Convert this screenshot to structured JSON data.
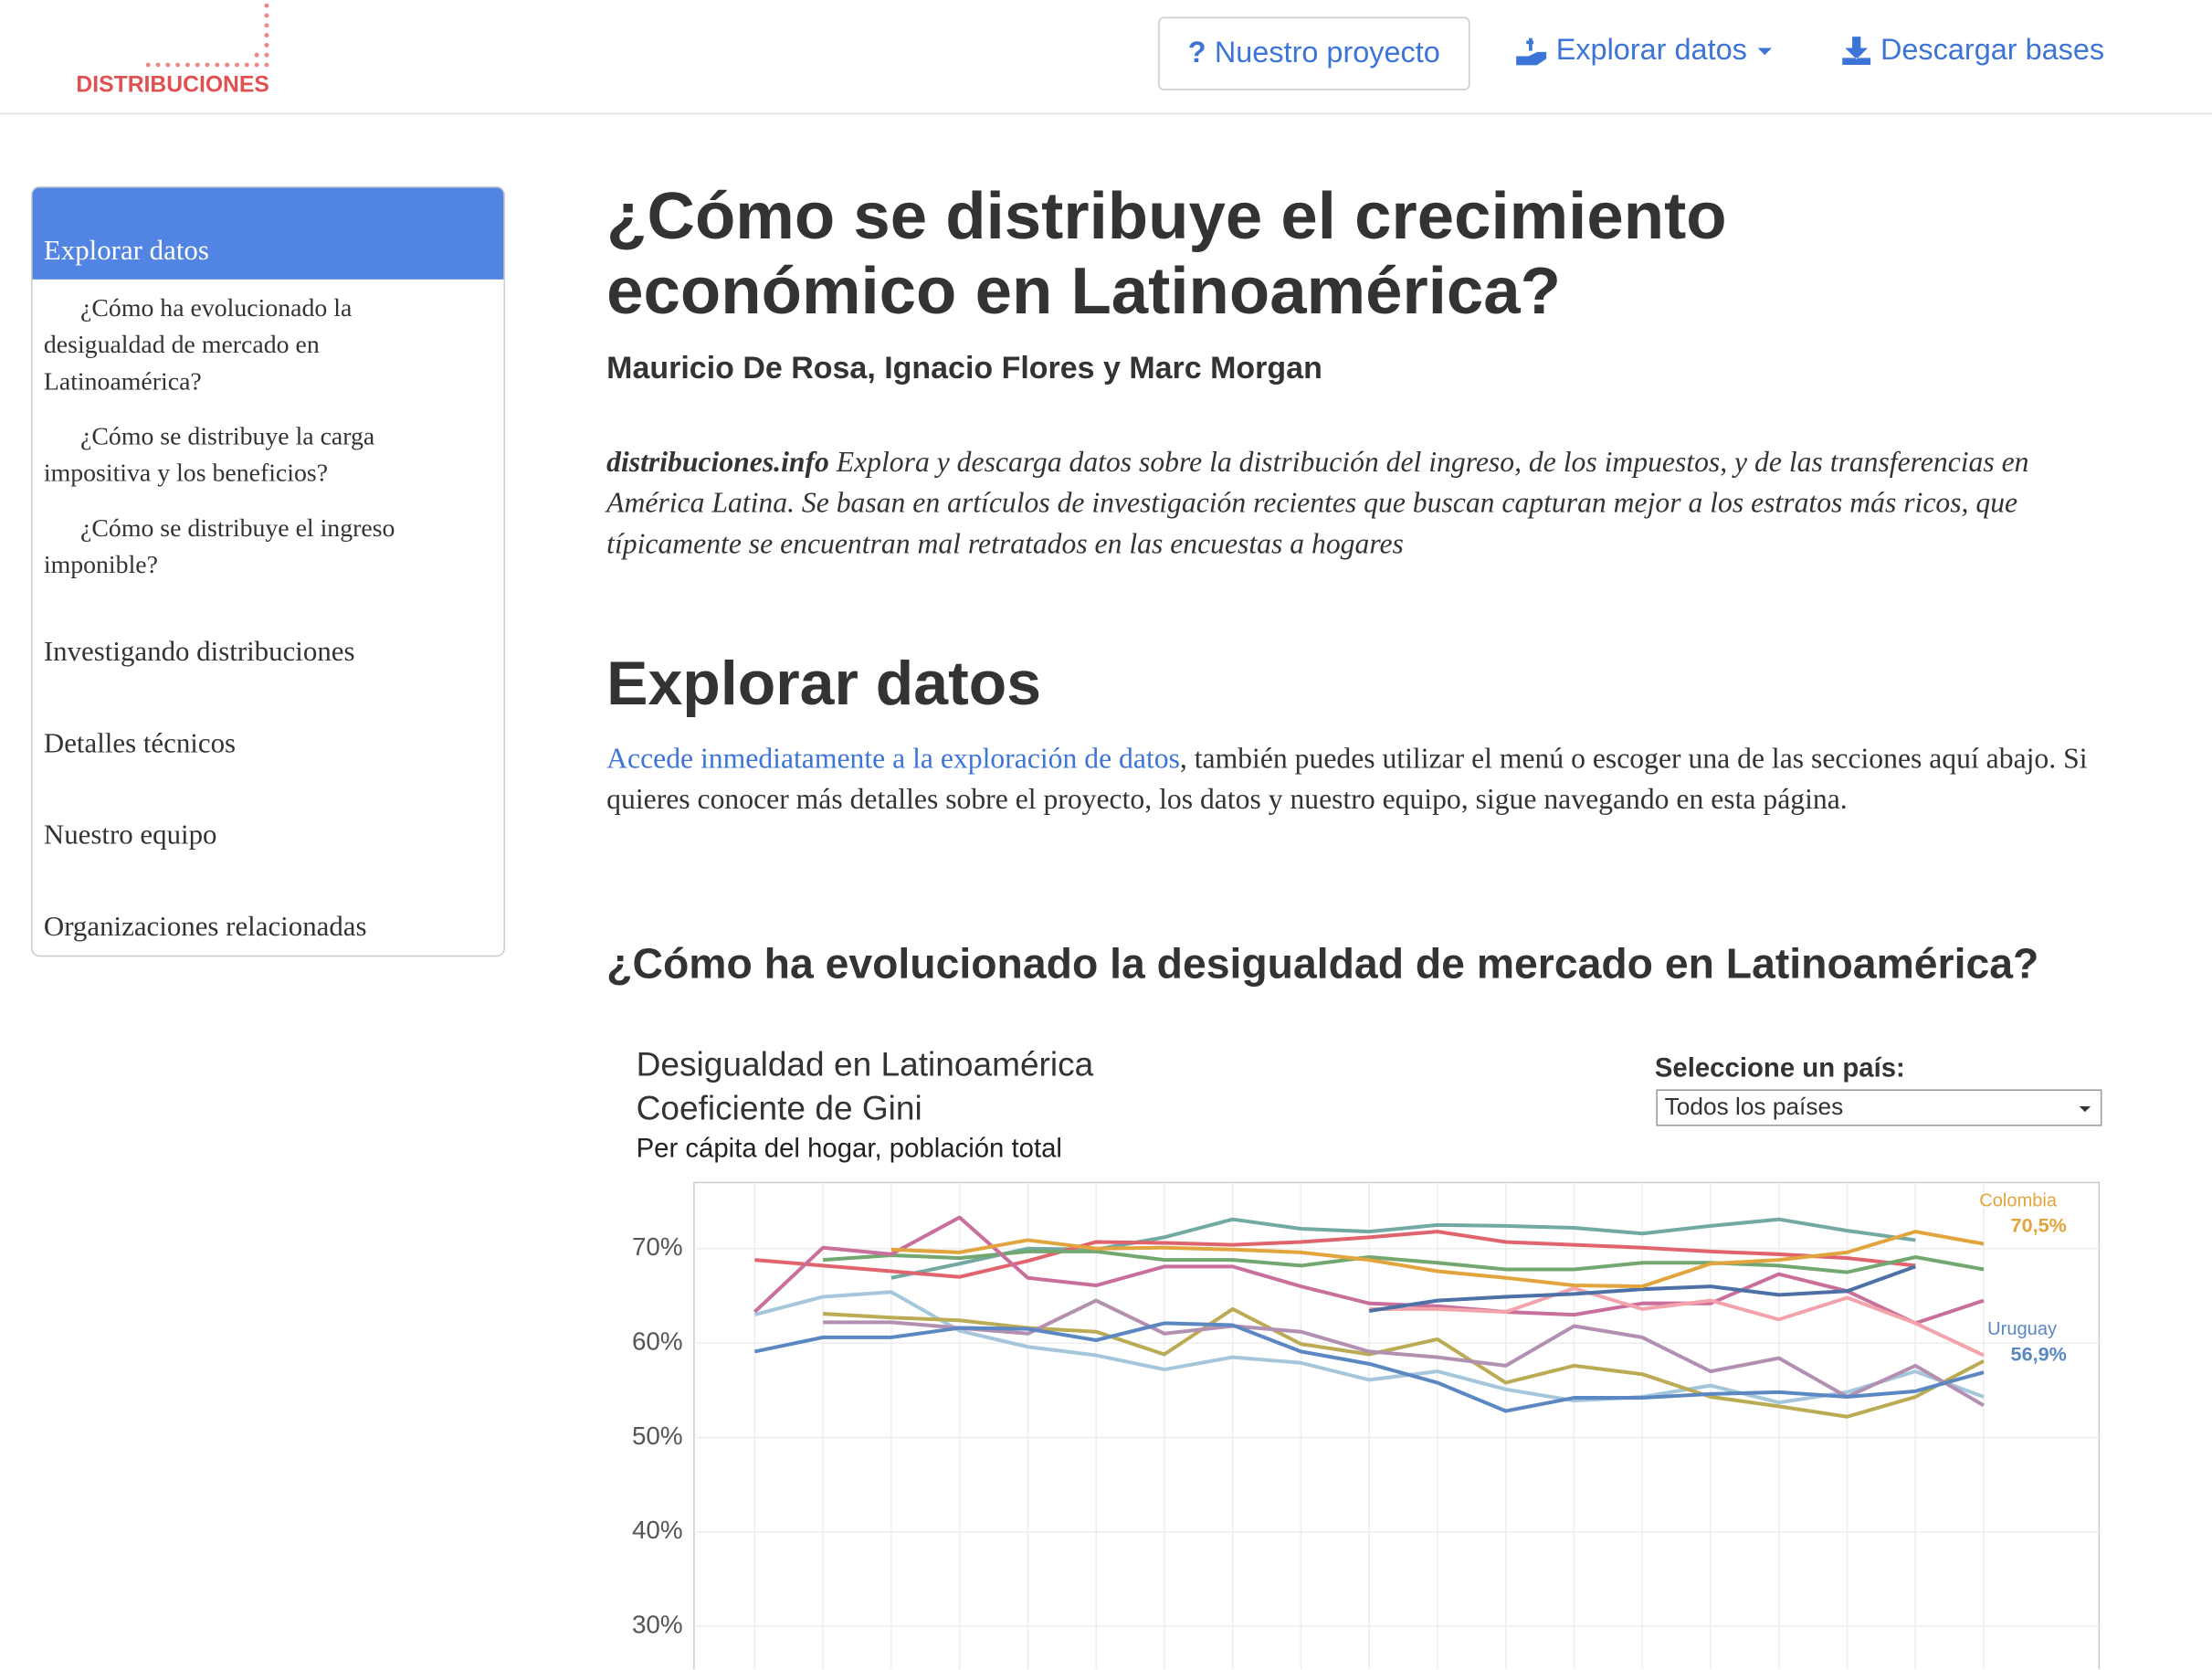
{
  "header": {
    "logo": "DISTRIBUCIONES",
    "nav": [
      "Nuestro proyecto",
      "Explorar datos",
      "Descargar bases"
    ]
  },
  "sidebar": {
    "active": "Explorar datos",
    "subitems": [
      "¿Cómo ha evolucionado la desigualdad de mercado en Latinoamérica?",
      "¿Cómo se distribuye la carga impositiva y los beneficios?",
      "¿Cómo se distribuye el ingreso imponible?"
    ],
    "items": [
      "Investigando distribuciones",
      "Detalles técnicos",
      "Nuestro equipo",
      "Organizaciones relacionadas"
    ]
  },
  "main": {
    "title": [
      "¿Cómo se distribuye el crecimiento",
      "económico en Latinoamérica?"
    ],
    "authors": "Mauricio De Rosa, Ignacio Flores y Marc Morgan",
    "intro_site": "distribuciones.info",
    "intro": "Explora y descarga datos sobre la distribución del ingreso, de los impuestos, y de las transferencias en América Latina. Se basan en artículos de investigación recientes que buscan capturan mejor a los estratos más ricos, que típicamente se encuentran mal retratados en las encuestas a hogares",
    "section_title": "Explorar datos",
    "section_link": "Accede inmediatamente a la exploración de datos",
    "section_text": ", también puedes utilizar el menú o escoger una de las secciones aquí abajo. Si quieres conocer más detalles sobre el proyecto, los datos y nuestro equipo, sigue navegando en esta página.",
    "subsection_title": "¿Cómo ha evolucionado la desigualdad de mercado en Latinoamérica?"
  },
  "chart_data": {
    "type": "line",
    "title": [
      "Desigualdad en Latinoamérica",
      "Coeficiente de Gini"
    ],
    "subtitle": "Per cápita del hogar, población total",
    "selector_label": "Seleccione un país:",
    "selector_value": "Todos los países",
    "categories": [
      null,
      null,
      null,
      null,
      null,
      null,
      null,
      null,
      null,
      null,
      null,
      null,
      null,
      null,
      null,
      null,
      null,
      null,
      null
    ],
    "ylim": [
      25,
      77
    ],
    "yticks": [
      {
        "value": 30,
        "label": "30%"
      },
      {
        "value": 40,
        "label": "40%"
      },
      {
        "value": 50,
        "label": "50%"
      },
      {
        "value": 60,
        "label": "60%"
      },
      {
        "value": 70,
        "label": "70%"
      }
    ],
    "grid": true,
    "series": [
      {
        "color": "#72a9a2",
        "values": [
          null,
          null,
          66.9,
          68.4,
          70,
          69.9,
          71.2,
          73.1,
          72.1,
          71.8,
          72.5,
          72.4,
          72.2,
          71.6,
          72.4,
          73.1,
          71.9,
          70.9,
          null
        ]
      },
      {
        "color": "#e0646e",
        "values": [
          68.8,
          68.2,
          67.6,
          67,
          68.7,
          70.7,
          70.6,
          70.4,
          70.7,
          71.2,
          71.8,
          70.7,
          70.4,
          70.1,
          69.7,
          69.4,
          69,
          68.2,
          null
        ]
      },
      {
        "color": "#72a86f",
        "values": [
          null,
          68.8,
          69.3,
          69,
          69.7,
          69.7,
          68.8,
          68.8,
          68.2,
          69.1,
          68.5,
          67.8,
          67.8,
          68.5,
          68.5,
          68.2,
          67.5,
          69.1,
          67.8
        ]
      },
      {
        "color": "#c96f9c",
        "values": [
          63.3,
          70.1,
          69.4,
          73.3,
          66.9,
          66.1,
          68.1,
          68.1,
          66,
          64.2,
          63.9,
          63.3,
          63,
          64.2,
          64.2,
          67.3,
          65.5,
          62.1,
          64.5
        ]
      },
      {
        "color": "#f2a3ab",
        "values": [
          null,
          null,
          null,
          null,
          null,
          null,
          null,
          null,
          null,
          63.6,
          63.6,
          63.3,
          65.8,
          63.6,
          64.5,
          62.5,
          64.8,
          62.1,
          58.7
        ]
      },
      {
        "color": "#a6c6dc",
        "values": [
          63,
          64.9,
          65.4,
          61.3,
          59.6,
          58.7,
          57.2,
          58.5,
          57.9,
          56.1,
          57,
          55.1,
          53.9,
          54.3,
          55.5,
          53.7,
          54.8,
          57,
          54.3
        ]
      },
      {
        "color": "#bcab55",
        "values": [
          null,
          63.1,
          62.7,
          62.4,
          61.6,
          61.2,
          58.8,
          63.6,
          59.9,
          58.8,
          60.4,
          55.8,
          57.6,
          56.7,
          54.3,
          53.3,
          52.2,
          54.3,
          58.1
        ]
      },
      {
        "color": "#b390b2",
        "values": [
          null,
          62.2,
          62.2,
          61.6,
          61,
          64.5,
          61,
          61.8,
          61.2,
          59.1,
          58.5,
          57.6,
          61.8,
          60.6,
          57,
          58.4,
          54.3,
          57.6,
          53.4
        ]
      },
      {
        "color": "#4d71a6",
        "values": [
          null,
          null,
          null,
          null,
          null,
          null,
          null,
          null,
          null,
          63.4,
          64.5,
          64.9,
          65.2,
          65.7,
          66,
          65.1,
          65.5,
          68.1,
          null
        ]
      },
      {
        "name": "Colombia",
        "color": "#e2a43c",
        "values": [
          null,
          null,
          69.9,
          69.6,
          70.9,
          70,
          70.1,
          69.9,
          69.6,
          68.8,
          67.6,
          66.9,
          66.1,
          66,
          68.4,
          68.8,
          69.6,
          71.8,
          70.5
        ],
        "value_labels": [
          null,
          null,
          null,
          null,
          null,
          null,
          null,
          null,
          null,
          null,
          null,
          null,
          null,
          null,
          null,
          null,
          null,
          null,
          "70,5%"
        ]
      },
      {
        "name": "Uruguay",
        "color": "#5b87c2",
        "values": [
          59.1,
          60.6,
          60.6,
          61.6,
          61.5,
          60.3,
          62.1,
          61.9,
          59.1,
          57.8,
          55.8,
          52.8,
          54.2,
          54.2,
          54.6,
          54.8,
          54.3,
          54.9,
          56.9
        ],
        "value_labels": [
          null,
          null,
          null,
          null,
          null,
          null,
          null,
          null,
          null,
          null,
          null,
          null,
          null,
          null,
          null,
          null,
          null,
          null,
          "56,9%"
        ]
      }
    ]
  }
}
